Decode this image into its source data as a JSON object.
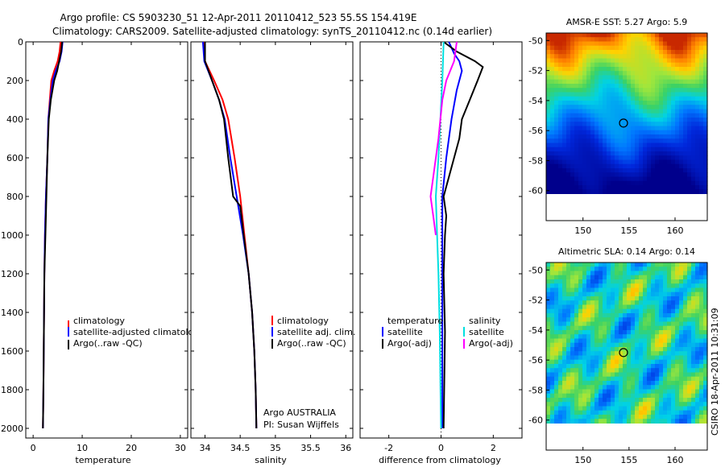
{
  "header": {
    "line1": "Argo profile: CS 5903230_51 12-Apr-2011 20110412_523 55.5S 154.419E",
    "line2": "Climatology: CARS2009. Satellite-adjusted climatology: synTS_20110412.nc (0.14d earlier)"
  },
  "stamp": "CSIRO 18-Apr-2011 10:31:09",
  "colors": {
    "climatology": "#ff0000",
    "satellite": "#0000ff",
    "argo": "#000000",
    "temp_diff": "#0000ff",
    "sal_sat": "#00e0e0",
    "sal_argo": "#ff00ff"
  },
  "chart_data": [
    {
      "type": "line",
      "xlabel": "temperature",
      "xlim": [
        -1.5,
        31.5
      ],
      "ylim": [
        0,
        2050
      ],
      "y_reversed": true,
      "xticks": [
        "0",
        "10",
        "20",
        "30"
      ],
      "yticks": [
        "0",
        "200",
        "400",
        "600",
        "800",
        "1000",
        "1200",
        "1400",
        "1600",
        "1800",
        "2000"
      ],
      "legend": [
        "climatology",
        "satellite-adjusted climatology",
        "Argo(..raw -QC)"
      ],
      "legend_placement": "center-right",
      "series": [
        {
          "name": "climatology",
          "color": "#ff0000",
          "points": [
            [
              5.6,
              0
            ],
            [
              5.4,
              50
            ],
            [
              5.0,
              100
            ],
            [
              4.3,
              150
            ],
            [
              3.7,
              200
            ],
            [
              3.4,
              300
            ],
            [
              3.1,
              400
            ],
            [
              2.9,
              600
            ],
            [
              2.6,
              800
            ],
            [
              2.4,
              1000
            ],
            [
              2.3,
              1200
            ],
            [
              2.2,
              1500
            ],
            [
              2.1,
              1800
            ],
            [
              2.0,
              2000
            ]
          ]
        },
        {
          "name": "satellite-adjusted climatology",
          "color": "#0000ff",
          "points": [
            [
              6.0,
              0
            ],
            [
              5.8,
              50
            ],
            [
              5.4,
              100
            ],
            [
              4.6,
              150
            ],
            [
              4.0,
              200
            ],
            [
              3.5,
              300
            ],
            [
              3.1,
              400
            ],
            [
              2.9,
              600
            ],
            [
              2.6,
              800
            ],
            [
              2.4,
              1000
            ],
            [
              2.3,
              1200
            ],
            [
              2.2,
              1500
            ],
            [
              2.1,
              1800
            ],
            [
              2.0,
              2000
            ]
          ]
        },
        {
          "name": "Argo(..raw -QC)",
          "color": "#000000",
          "points": [
            [
              5.9,
              0
            ],
            [
              5.7,
              50
            ],
            [
              5.3,
              100
            ],
            [
              4.9,
              150
            ],
            [
              4.3,
              200
            ],
            [
              3.6,
              300
            ],
            [
              3.2,
              400
            ],
            [
              2.9,
              600
            ],
            [
              2.7,
              800
            ],
            [
              2.5,
              1000
            ],
            [
              2.3,
              1200
            ],
            [
              2.2,
              1500
            ],
            [
              2.1,
              1800
            ],
            [
              2.0,
              2000
            ]
          ]
        }
      ]
    },
    {
      "type": "line",
      "xlabel": "salinity",
      "xlim": [
        33.8,
        36.1
      ],
      "ylim": [
        0,
        2050
      ],
      "y_reversed": true,
      "xticks": [
        "34",
        "34.5",
        "35",
        "35.5",
        "36"
      ],
      "legend": [
        "climatology",
        "satellite adj. clim.",
        "Argo(..raw -QC)"
      ],
      "legend_placement": "center-right",
      "annotation": [
        "Argo AUSTRALIA",
        "PI: Susan Wijffels"
      ],
      "series": [
        {
          "name": "climatology",
          "color": "#ff0000",
          "points": [
            [
              33.98,
              0
            ],
            [
              34.0,
              100
            ],
            [
              34.13,
              200
            ],
            [
              34.25,
              300
            ],
            [
              34.33,
              400
            ],
            [
              34.42,
              600
            ],
            [
              34.5,
              800
            ],
            [
              34.56,
              1000
            ],
            [
              34.62,
              1200
            ],
            [
              34.67,
              1400
            ],
            [
              34.7,
              1600
            ],
            [
              34.72,
              1800
            ],
            [
              34.73,
              2000
            ]
          ]
        },
        {
          "name": "satellite adj. clim.",
          "color": "#0000ff",
          "points": [
            [
              33.97,
              0
            ],
            [
              33.99,
              100
            ],
            [
              34.1,
              200
            ],
            [
              34.2,
              300
            ],
            [
              34.28,
              400
            ],
            [
              34.36,
              600
            ],
            [
              34.45,
              800
            ],
            [
              34.54,
              1000
            ],
            [
              34.62,
              1200
            ],
            [
              34.67,
              1400
            ],
            [
              34.7,
              1600
            ],
            [
              34.72,
              1800
            ],
            [
              34.73,
              2000
            ]
          ]
        },
        {
          "name": "Argo(..raw -QC)",
          "color": "#000000",
          "points": [
            [
              34.0,
              0
            ],
            [
              34.0,
              100
            ],
            [
              34.1,
              200
            ],
            [
              34.2,
              300
            ],
            [
              34.27,
              400
            ],
            [
              34.33,
              600
            ],
            [
              34.4,
              800
            ],
            [
              34.5,
              850
            ],
            [
              34.55,
              1000
            ],
            [
              34.62,
              1200
            ],
            [
              34.67,
              1400
            ],
            [
              34.7,
              1600
            ],
            [
              34.72,
              1800
            ],
            [
              34.73,
              2000
            ]
          ]
        }
      ]
    },
    {
      "type": "line",
      "xlabel": "difference from climatology",
      "xlim": [
        -3.1,
        3.1
      ],
      "ylim": [
        0,
        2050
      ],
      "y_reversed": true,
      "xticks": [
        "-2",
        "0",
        "2"
      ],
      "legend_titles": [
        "temperature",
        "salinity"
      ],
      "legend": [
        "satellite",
        "Argo(-adj)",
        "satellite",
        "Argo(-adj)"
      ],
      "legend_placement": "center",
      "series": [
        {
          "name": "temperature satellite",
          "color": "#0000ff",
          "points": [
            [
              0.3,
              0
            ],
            [
              0.5,
              60
            ],
            [
              0.7,
              100
            ],
            [
              0.8,
              150
            ],
            [
              0.6,
              250
            ],
            [
              0.4,
              400
            ],
            [
              0.2,
              600
            ],
            [
              0.05,
              800
            ],
            [
              0.05,
              1000
            ],
            [
              0.05,
              1500
            ],
            [
              0.05,
              2000
            ]
          ]
        },
        {
          "name": "temperature Argo(-adj)",
          "color": "#000000",
          "points": [
            [
              0.1,
              0
            ],
            [
              0.6,
              50
            ],
            [
              1.3,
              100
            ],
            [
              1.6,
              130
            ],
            [
              1.4,
              200
            ],
            [
              1.1,
              300
            ],
            [
              0.8,
              400
            ],
            [
              0.7,
              500
            ],
            [
              0.5,
              600
            ],
            [
              0.3,
              700
            ],
            [
              0.1,
              800
            ],
            [
              0.2,
              900
            ],
            [
              0.15,
              1000
            ],
            [
              0.1,
              1200
            ],
            [
              0.15,
              1500
            ],
            [
              0.1,
              2000
            ]
          ]
        },
        {
          "name": "salinity satellite",
          "color": "#00e0e0",
          "points": [
            [
              0.1,
              0
            ],
            [
              0.05,
              200
            ],
            [
              -0.1,
              600
            ],
            [
              -0.2,
              800
            ],
            [
              -0.15,
              1000
            ],
            [
              -0.1,
              1200
            ],
            [
              -0.05,
              1500
            ],
            [
              0.0,
              2000
            ]
          ]
        },
        {
          "name": "salinity Argo(-adj)",
          "color": "#ff00ff",
          "points": [
            [
              0.6,
              0
            ],
            [
              0.5,
              100
            ],
            [
              0.2,
              200
            ],
            [
              0.05,
              300
            ],
            [
              -0.1,
              500
            ],
            [
              -0.3,
              700
            ],
            [
              -0.4,
              800
            ],
            [
              -0.3,
              900
            ],
            [
              -0.2,
              1000
            ]
          ]
        }
      ]
    },
    {
      "type": "heatmap",
      "title": "AMSR-E SST: 5.27 Argo: 5.9",
      "xticks": [
        "150",
        "155",
        "160"
      ],
      "yticks": [
        "-50",
        "-52",
        "-54",
        "-56",
        "-58",
        "-60"
      ],
      "xlim": [
        146,
        163.5
      ],
      "ylim": [
        -62,
        -49.5
      ],
      "marker": {
        "lon": 154.4,
        "lat": -55.5
      }
    },
    {
      "type": "heatmap",
      "title": "Altimetric SLA: 0.14 Argo: 0.14",
      "xticks": [
        "150",
        "155",
        "160"
      ],
      "yticks": [
        "-50",
        "-52",
        "-54",
        "-56",
        "-58",
        "-60"
      ],
      "xlim": [
        146,
        163.5
      ],
      "ylim": [
        -62,
        -49.5
      ],
      "marker": {
        "lon": 154.4,
        "lat": -55.5
      }
    }
  ]
}
